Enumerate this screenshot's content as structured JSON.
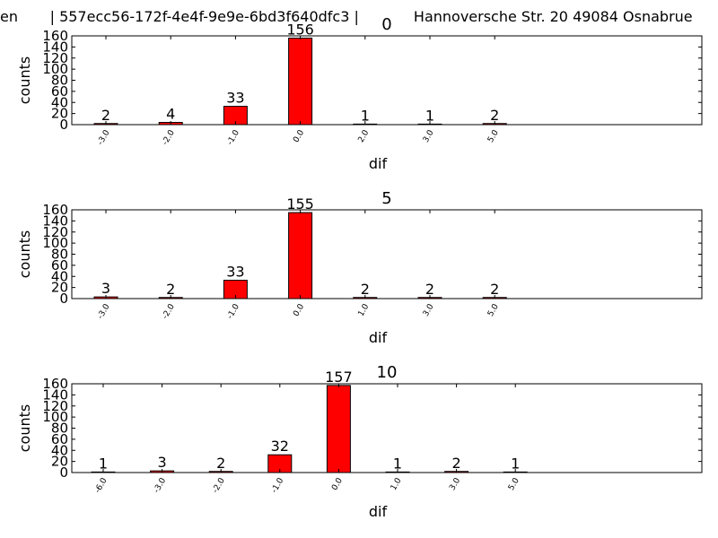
{
  "page": {
    "header_text": "en       | 557ecc56-172f-4e4f-9e9e-6bd3f640dfc3 |            Hannoversche Str. 20 49084 Osnabrue"
  },
  "colors": {
    "bar": "#ff0000",
    "axis": "#000000",
    "background": "#ffffff"
  },
  "chart_data": [
    {
      "type": "bar",
      "title": "0",
      "xlabel": "dif",
      "ylabel": "counts",
      "categories": [
        "-3.0",
        "-2.0",
        "-1.0",
        "0.0",
        "2.0",
        "3.0",
        "5.0"
      ],
      "values": [
        2,
        4,
        33,
        156,
        1,
        1,
        2
      ],
      "ylim": [
        0,
        160
      ],
      "yticks": [
        0,
        20,
        40,
        60,
        80,
        100,
        120,
        140,
        160
      ],
      "grid": false,
      "legend": "none"
    },
    {
      "type": "bar",
      "title": "5",
      "xlabel": "dif",
      "ylabel": "counts",
      "categories": [
        "-3.0",
        "-2.0",
        "-1.0",
        "0.0",
        "1.0",
        "3.0",
        "5.0"
      ],
      "values": [
        3,
        2,
        33,
        155,
        2,
        2,
        2
      ],
      "ylim": [
        0,
        160
      ],
      "yticks": [
        0,
        20,
        40,
        60,
        80,
        100,
        120,
        140,
        160
      ],
      "grid": false,
      "legend": "none"
    },
    {
      "type": "bar",
      "title": "10",
      "xlabel": "dif",
      "ylabel": "counts",
      "categories": [
        "-6.0",
        "-3.0",
        "-2.0",
        "-1.0",
        "0.0",
        "1.0",
        "3.0",
        "5.0"
      ],
      "values": [
        1,
        3,
        2,
        32,
        157,
        1,
        2,
        1
      ],
      "ylim": [
        0,
        160
      ],
      "yticks": [
        0,
        20,
        40,
        60,
        80,
        100,
        120,
        140,
        160
      ],
      "grid": false,
      "legend": "none"
    }
  ]
}
